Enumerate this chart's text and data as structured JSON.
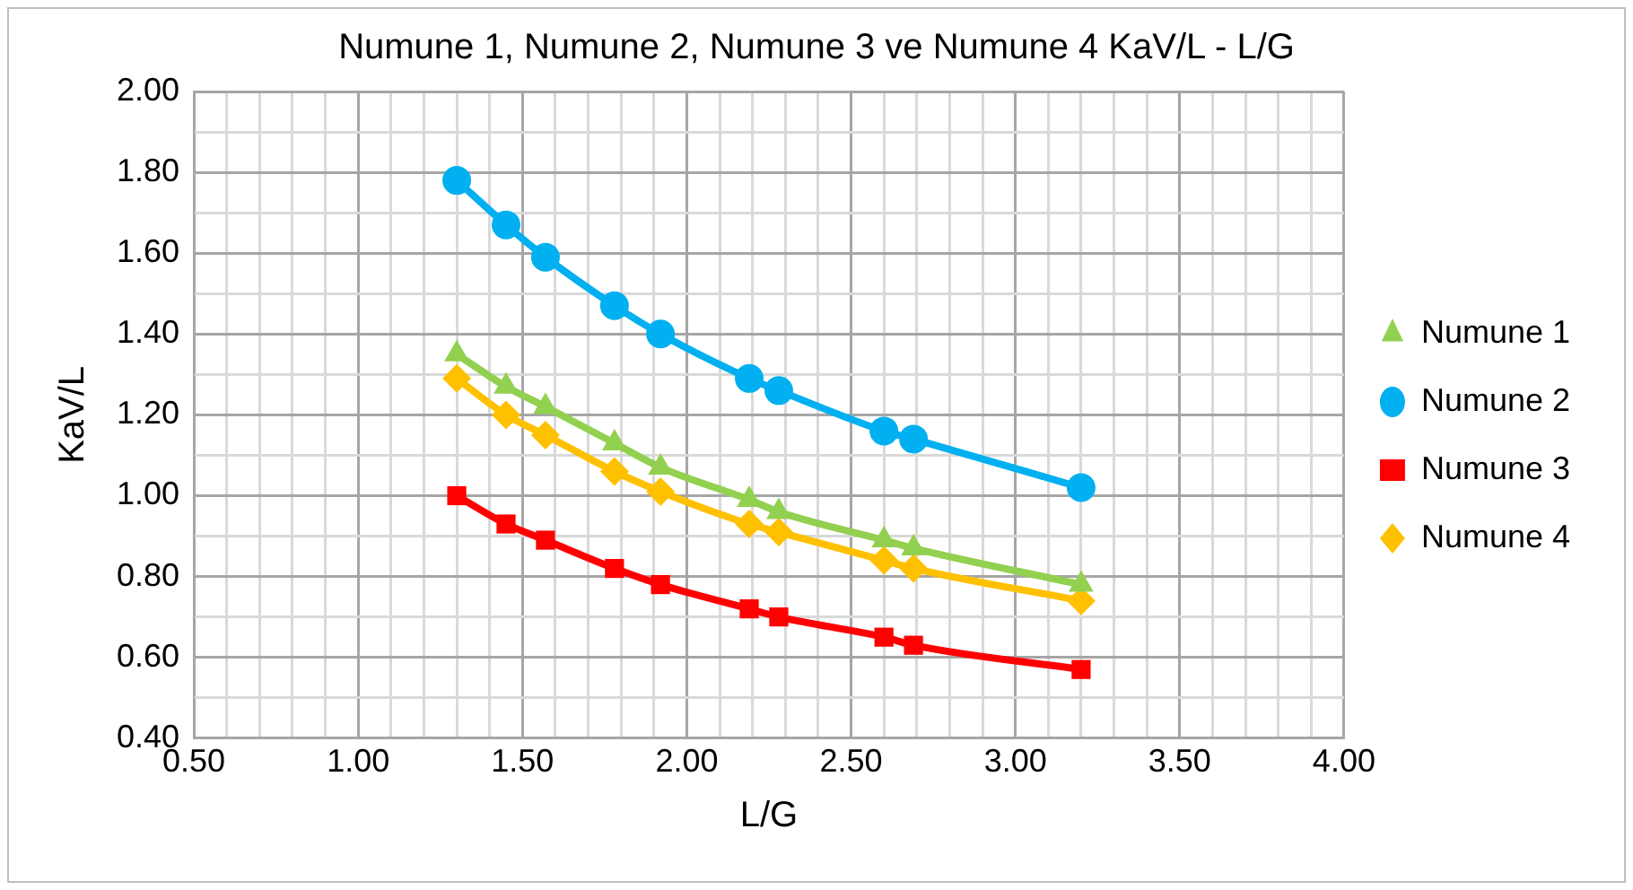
{
  "chart_data": {
    "type": "line",
    "title": "Numune 1, Numune 2, Numune 3 ve Numune 4 KaV/L - L/G",
    "xlabel": "L/G",
    "ylabel": "KaV/L",
    "x": [
      1.3,
      1.45,
      1.57,
      1.78,
      1.92,
      2.19,
      2.28,
      2.6,
      2.69,
      3.2
    ],
    "series": [
      {
        "name": "Numune 1",
        "color": "#92d050",
        "marker": "triangle",
        "values": [
          1.35,
          1.27,
          1.22,
          1.13,
          1.07,
          0.99,
          0.96,
          0.89,
          0.87,
          0.78
        ]
      },
      {
        "name": "Numune 2",
        "color": "#00b0f0",
        "marker": "circle",
        "values": [
          1.78,
          1.67,
          1.59,
          1.47,
          1.4,
          1.29,
          1.26,
          1.16,
          1.14,
          1.02
        ]
      },
      {
        "name": "Numune 3",
        "color": "#ff0000",
        "marker": "square",
        "values": [
          1.0,
          0.93,
          0.89,
          0.82,
          0.78,
          0.72,
          0.7,
          0.65,
          0.63,
          0.57
        ]
      },
      {
        "name": "Numune 4",
        "color": "#ffc000",
        "marker": "diamond",
        "values": [
          1.29,
          1.2,
          1.15,
          1.06,
          1.01,
          0.93,
          0.91,
          0.84,
          0.82,
          0.74
        ]
      }
    ],
    "xlim": [
      0.5,
      4.0
    ],
    "xticks": [
      {
        "value": 0.5,
        "label": "0.50"
      },
      {
        "value": 0.6,
        "label": null
      },
      {
        "value": 0.7,
        "label": null
      },
      {
        "value": 0.8,
        "label": null
      },
      {
        "value": 0.9,
        "label": null
      },
      {
        "value": 1.0,
        "label": "1.00"
      },
      {
        "value": 1.1,
        "label": null
      },
      {
        "value": 1.2,
        "label": null
      },
      {
        "value": 1.3,
        "label": null
      },
      {
        "value": 1.4,
        "label": null
      },
      {
        "value": 1.5,
        "label": "1.50"
      },
      {
        "value": 1.6,
        "label": null
      },
      {
        "value": 1.7,
        "label": null
      },
      {
        "value": 1.8,
        "label": null
      },
      {
        "value": 1.9,
        "label": null
      },
      {
        "value": 2.0,
        "label": "2.00"
      },
      {
        "value": 2.1,
        "label": null
      },
      {
        "value": 2.2,
        "label": null
      },
      {
        "value": 2.3,
        "label": null
      },
      {
        "value": 2.4,
        "label": null
      },
      {
        "value": 2.5,
        "label": "2.50"
      },
      {
        "value": 2.6,
        "label": null
      },
      {
        "value": 2.7,
        "label": null
      },
      {
        "value": 2.8,
        "label": null
      },
      {
        "value": 2.9,
        "label": null
      },
      {
        "value": 3.0,
        "label": "3.00"
      },
      {
        "value": 3.1,
        "label": null
      },
      {
        "value": 3.2,
        "label": null
      },
      {
        "value": 3.3,
        "label": null
      },
      {
        "value": 3.4,
        "label": null
      },
      {
        "value": 3.5,
        "label": "3.50"
      },
      {
        "value": 3.6,
        "label": null
      },
      {
        "value": 3.7,
        "label": null
      },
      {
        "value": 3.8,
        "label": null
      },
      {
        "value": 3.9,
        "label": null
      },
      {
        "value": 4.0,
        "label": "4.00"
      }
    ],
    "ylim": [
      0.4,
      2.0
    ],
    "yticks": [
      {
        "value": 0.4,
        "label": "0.40"
      },
      {
        "value": 0.5,
        "label": null
      },
      {
        "value": 0.6,
        "label": "0.60"
      },
      {
        "value": 0.7,
        "label": null
      },
      {
        "value": 0.8,
        "label": "0.80"
      },
      {
        "value": 0.9,
        "label": null
      },
      {
        "value": 1.0,
        "label": "1.00"
      },
      {
        "value": 1.1,
        "label": null
      },
      {
        "value": 1.2,
        "label": "1.20"
      },
      {
        "value": 1.3,
        "label": null
      },
      {
        "value": 1.4,
        "label": "1.40"
      },
      {
        "value": 1.5,
        "label": null
      },
      {
        "value": 1.6,
        "label": "1.60"
      },
      {
        "value": 1.7,
        "label": null
      },
      {
        "value": 1.8,
        "label": "1.80"
      },
      {
        "value": 1.9,
        "label": null
      },
      {
        "value": 2.0,
        "label": "2.00"
      }
    ],
    "grid": true,
    "legend": "right",
    "line_style": "solid"
  }
}
